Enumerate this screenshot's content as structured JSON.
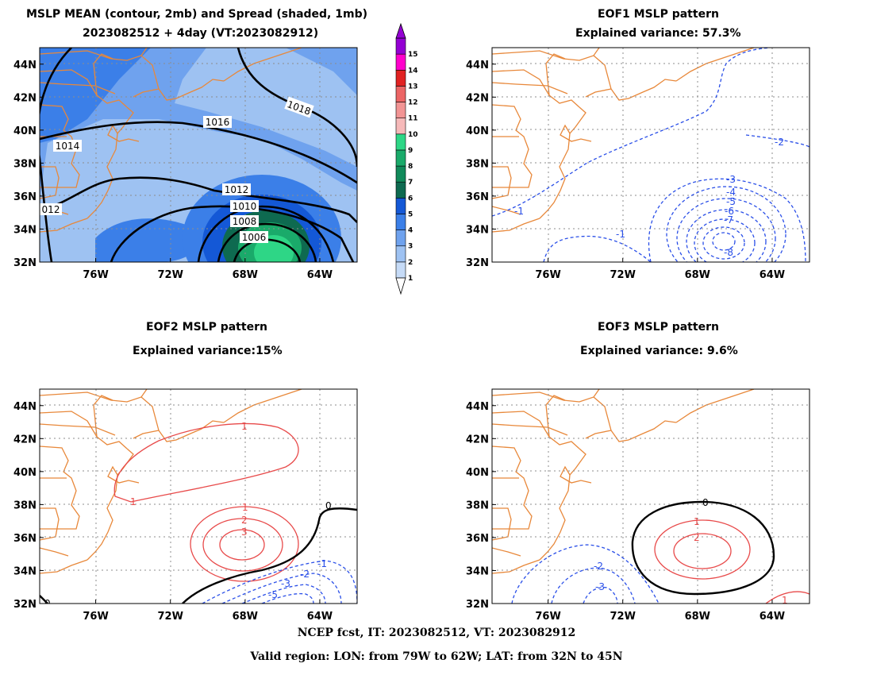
{
  "panels": [
    {
      "id": "mean",
      "title1": "MSLP MEAN (contour, 2mb) and Spread (shaded, 1mb)",
      "title2": "2023082512 + 4day (VT:2023082912)"
    },
    {
      "id": "eof1",
      "title1": "EOF1 MSLP pattern",
      "title2": "Explained variance: 57.3%"
    },
    {
      "id": "eof2",
      "title1": "EOF2 MSLP pattern",
      "title2": "Explained variance:15%"
    },
    {
      "id": "eof3",
      "title1": "EOF3 MSLP pattern",
      "title2": "Explained variance: 9.6%"
    }
  ],
  "axes": {
    "lon_ticks": [
      "76W",
      "72W",
      "68W",
      "64W"
    ],
    "lat_ticks": [
      "44N",
      "42N",
      "40N",
      "38N",
      "36N",
      "34N",
      "32N"
    ],
    "lon_range": [
      -79,
      -62
    ],
    "lat_range": [
      32,
      45
    ]
  },
  "colorbar": {
    "labels": [
      "1",
      "2",
      "3",
      "4",
      "5",
      "6",
      "7",
      "8",
      "9",
      "10",
      "11",
      "12",
      "13",
      "14",
      "15"
    ],
    "colors": [
      "#c6dbf7",
      "#9ec2f2",
      "#6fa2ee",
      "#3b7fe8",
      "#1458d6",
      "#0e6a50",
      "#118a5a",
      "#1aaa6a",
      "#2ed686",
      "#f6b9b9",
      "#f29494",
      "#ec6565",
      "#e12222",
      "#ff00cc",
      "#9400d3"
    ]
  },
  "mean_contour_labels": [
    "1018",
    "1016",
    "1014",
    "1012",
    "1010",
    "1008",
    "1006",
    "012"
  ],
  "eof1_labels": [
    "-2",
    "-1",
    "-1",
    "-3",
    "-4",
    "-5",
    "-6",
    "-7",
    "-8"
  ],
  "eof2_labels": [
    "1",
    "1",
    "1",
    "2",
    "3",
    "0",
    "-1",
    "-2",
    "-3",
    "-5",
    "0"
  ],
  "eof3_labels": [
    "0",
    "1",
    "2",
    "-2",
    "-3",
    "1"
  ],
  "footer": {
    "line1": "NCEP fcst, IT: 2023082512, VT: 2023082912",
    "line2": "Valid region: LON: from 79W to 62W; LAT: from 32N to 45N"
  }
}
